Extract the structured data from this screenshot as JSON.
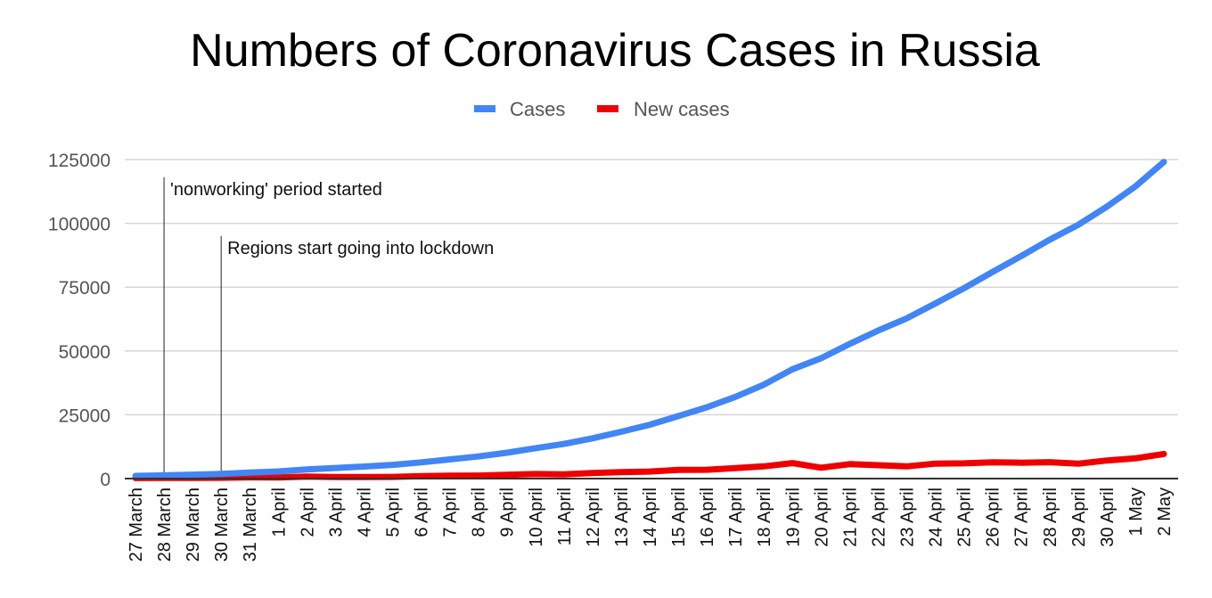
{
  "chart_data": {
    "type": "line",
    "title": "Numbers of Coronavirus Cases in Russia",
    "xlabel": "",
    "ylabel": "",
    "ylim": [
      0,
      125000
    ],
    "yticks": [
      0,
      25000,
      50000,
      75000,
      100000,
      125000
    ],
    "ytick_labels": [
      "0",
      "25000",
      "50000",
      "75000",
      "100000",
      "125000"
    ],
    "grid": true,
    "legend_position": "top",
    "categories": [
      "27 March",
      "28 March",
      "29 March",
      "30 March",
      "31 March",
      "1 April",
      "2 April",
      "3 April",
      "4 April",
      "5 April",
      "6 April",
      "7 April",
      "8 April",
      "9 April",
      "10 April",
      "11 April",
      "12 April",
      "13 April",
      "14 April",
      "15 April",
      "16 April",
      "17 April",
      "18 April",
      "19 April",
      "20 April",
      "21 April",
      "22 April",
      "23 April",
      "24 April",
      "25 April",
      "26 April",
      "27 April",
      "28 April",
      "29 April",
      "30 April",
      "1 May",
      "2 May"
    ],
    "series": [
      {
        "name": "Cases",
        "color": "#4285f4",
        "values": [
          1036,
          1264,
          1534,
          1836,
          2337,
          2777,
          3548,
          4149,
          4731,
          5389,
          6343,
          7497,
          8672,
          10131,
          11917,
          13584,
          15770,
          18328,
          21102,
          24490,
          27938,
          32008,
          36793,
          42853,
          47121,
          52763,
          57999,
          62773,
          68622,
          74588,
          80949,
          87147,
          93558,
          99399,
          106498,
          114431,
          124054
        ]
      },
      {
        "name": "New cases",
        "color": "#ee0000",
        "values": [
          196,
          228,
          270,
          302,
          501,
          440,
          771,
          601,
          582,
          658,
          954,
          1154,
          1175,
          1459,
          1786,
          1667,
          2186,
          2558,
          2774,
          3388,
          3448,
          4070,
          4785,
          6060,
          4268,
          5642,
          5236,
          4774,
          5849,
          5966,
          6361,
          6198,
          6411,
          5841,
          7099,
          7933,
          9623
        ]
      }
    ],
    "annotations": [
      {
        "x": "28 March",
        "text": "'nonworking' period started",
        "top_value": 118000
      },
      {
        "x": "30 March",
        "text": "Regions start going into lockdown",
        "top_value": 95000
      }
    ]
  }
}
